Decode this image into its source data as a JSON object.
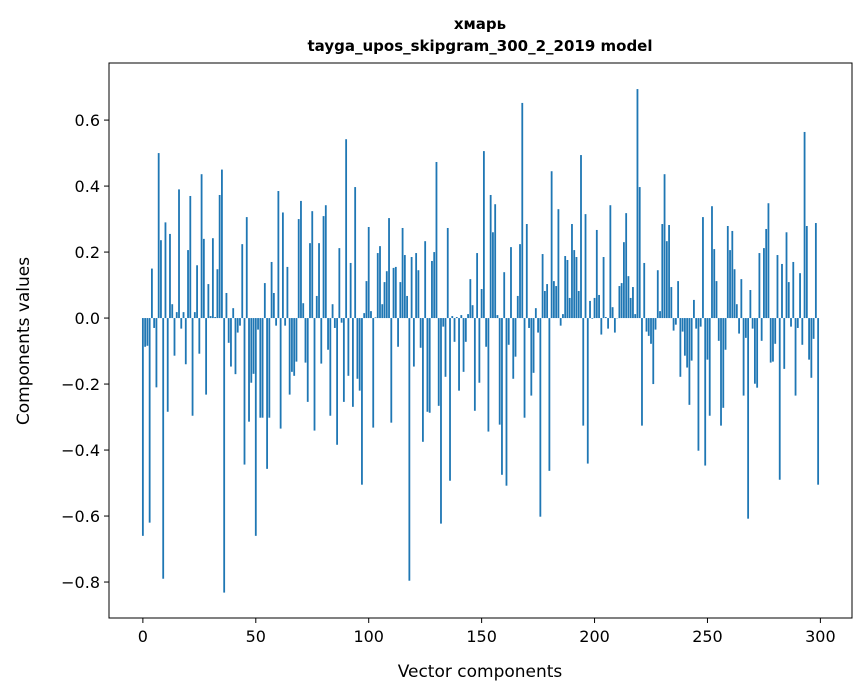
{
  "chart_data": {
    "type": "bar",
    "title": "хмарь",
    "subtitle": "tayga_upos_skipgram_300_2_2019 model",
    "xlabel": "Vector components",
    "ylabel": "Components values",
    "xlim": [
      -15,
      314
    ],
    "ylim": [
      -0.909,
      0.773
    ],
    "xticks": [
      0,
      50,
      100,
      150,
      200,
      250,
      300
    ],
    "xtick_labels": [
      "0",
      "50",
      "100",
      "150",
      "200",
      "250",
      "300"
    ],
    "yticks": [
      -0.8,
      -0.6,
      -0.4,
      -0.2,
      0.0,
      0.2,
      0.4,
      0.6
    ],
    "ytick_labels": [
      "−0.8",
      "−0.6",
      "−0.4",
      "−0.2",
      "0.0",
      "0.2",
      "0.4",
      "0.6"
    ],
    "grid": false,
    "bar_color": "#1f77b4",
    "values": [
      -0.66,
      -0.087,
      -0.084,
      -0.62,
      0.15,
      -0.03,
      -0.21,
      0.5,
      0.236,
      -0.79,
      0.29,
      -0.284,
      0.255,
      0.042,
      -0.114,
      0.018,
      0.39,
      -0.032,
      0.018,
      -0.14,
      0.206,
      0.37,
      -0.296,
      0.018,
      0.16,
      -0.108,
      0.436,
      0.24,
      -0.232,
      0.103,
      0.006,
      0.242,
      0.003,
      0.148,
      0.373,
      0.45,
      -0.832,
      0.076,
      -0.075,
      -0.147,
      0.03,
      -0.17,
      -0.044,
      -0.023,
      0.224,
      -0.444,
      0.306,
      -0.314,
      -0.196,
      -0.169,
      -0.66,
      -0.035,
      -0.302,
      -0.302,
      0.106,
      -0.457,
      -0.302,
      0.17,
      0.076,
      -0.023,
      0.385,
      -0.335,
      0.32,
      -0.023,
      0.155,
      -0.232,
      -0.163,
      -0.175,
      -0.132,
      0.3,
      0.355,
      0.045,
      -0.135,
      -0.254,
      0.227,
      0.324,
      -0.341,
      0.067,
      0.227,
      -0.138,
      0.309,
      0.342,
      -0.096,
      -0.296,
      0.042,
      -0.03,
      -0.384,
      0.212,
      -0.014,
      -0.254,
      0.542,
      -0.175,
      0.167,
      -0.269,
      0.397,
      -0.184,
      -0.22,
      -0.505,
      0.015,
      0.112,
      0.276,
      0.021,
      -0.332,
      0.002,
      0.197,
      0.218,
      0.042,
      0.109,
      0.142,
      0.303,
      -0.317,
      0.152,
      0.155,
      -0.087,
      0.109,
      0.273,
      0.191,
      0.067,
      -0.796,
      0.185,
      -0.147,
      0.197,
      0.145,
      -0.09,
      -0.375,
      0.233,
      -0.284,
      -0.287,
      0.173,
      0.2,
      0.473,
      -0.266,
      -0.623,
      -0.026,
      -0.178,
      0.273,
      -0.493,
      0.006,
      -0.072,
      0.003,
      -0.22,
      0.009,
      -0.163,
      -0.072,
      0.012,
      0.118,
      0.039,
      -0.281,
      0.197,
      -0.196,
      0.088,
      0.506,
      -0.087,
      -0.344,
      0.373,
      0.26,
      0.345,
      0.009,
      -0.323,
      -0.475,
      0.139,
      -0.508,
      -0.081,
      0.215,
      -0.184,
      -0.117,
      0.067,
      0.224,
      0.652,
      -0.302,
      0.285,
      -0.03,
      -0.235,
      -0.166,
      0.03,
      -0.044,
      -0.602,
      0.194,
      0.082,
      0.103,
      -0.463,
      0.445,
      0.112,
      0.097,
      0.33,
      -0.023,
      0.012,
      0.188,
      0.176,
      0.061,
      0.285,
      0.206,
      0.185,
      0.082,
      0.494,
      -0.326,
      0.315,
      -0.441,
      0.052,
      -0.002,
      0.061,
      0.267,
      0.07,
      -0.05,
      0.185,
      0.003,
      -0.032,
      0.342,
      0.033,
      -0.044,
      0.0,
      0.097,
      0.106,
      0.23,
      0.318,
      0.127,
      0.061,
      0.094,
      0.012,
      0.694,
      0.397,
      -0.326,
      0.167,
      -0.041,
      -0.054,
      -0.078,
      -0.2,
      -0.035,
      0.145,
      0.021,
      0.285,
      0.436,
      0.233,
      0.282,
      0.094,
      -0.038,
      -0.02,
      0.112,
      -0.178,
      -0.041,
      -0.114,
      -0.15,
      -0.263,
      -0.129,
      0.055,
      -0.032,
      -0.402,
      -0.026,
      0.306,
      -0.447,
      -0.126,
      -0.296,
      0.339,
      0.209,
      0.112,
      -0.069,
      -0.326,
      -0.272,
      -0.096,
      0.279,
      0.206,
      0.264,
      0.148,
      0.042,
      -0.047,
      0.118,
      -0.235,
      -0.06,
      -0.608,
      0.085,
      -0.032,
      -0.199,
      -0.211,
      0.197,
      -0.069,
      0.212,
      0.27,
      0.348,
      -0.135,
      -0.132,
      -0.078,
      0.191,
      -0.49,
      0.164,
      -0.154,
      0.26,
      0.109,
      -0.026,
      0.17,
      -0.235,
      -0.03,
      0.136,
      -0.081,
      0.564,
      0.279,
      -0.126,
      -0.181,
      -0.063,
      0.288,
      -0.505
    ]
  }
}
